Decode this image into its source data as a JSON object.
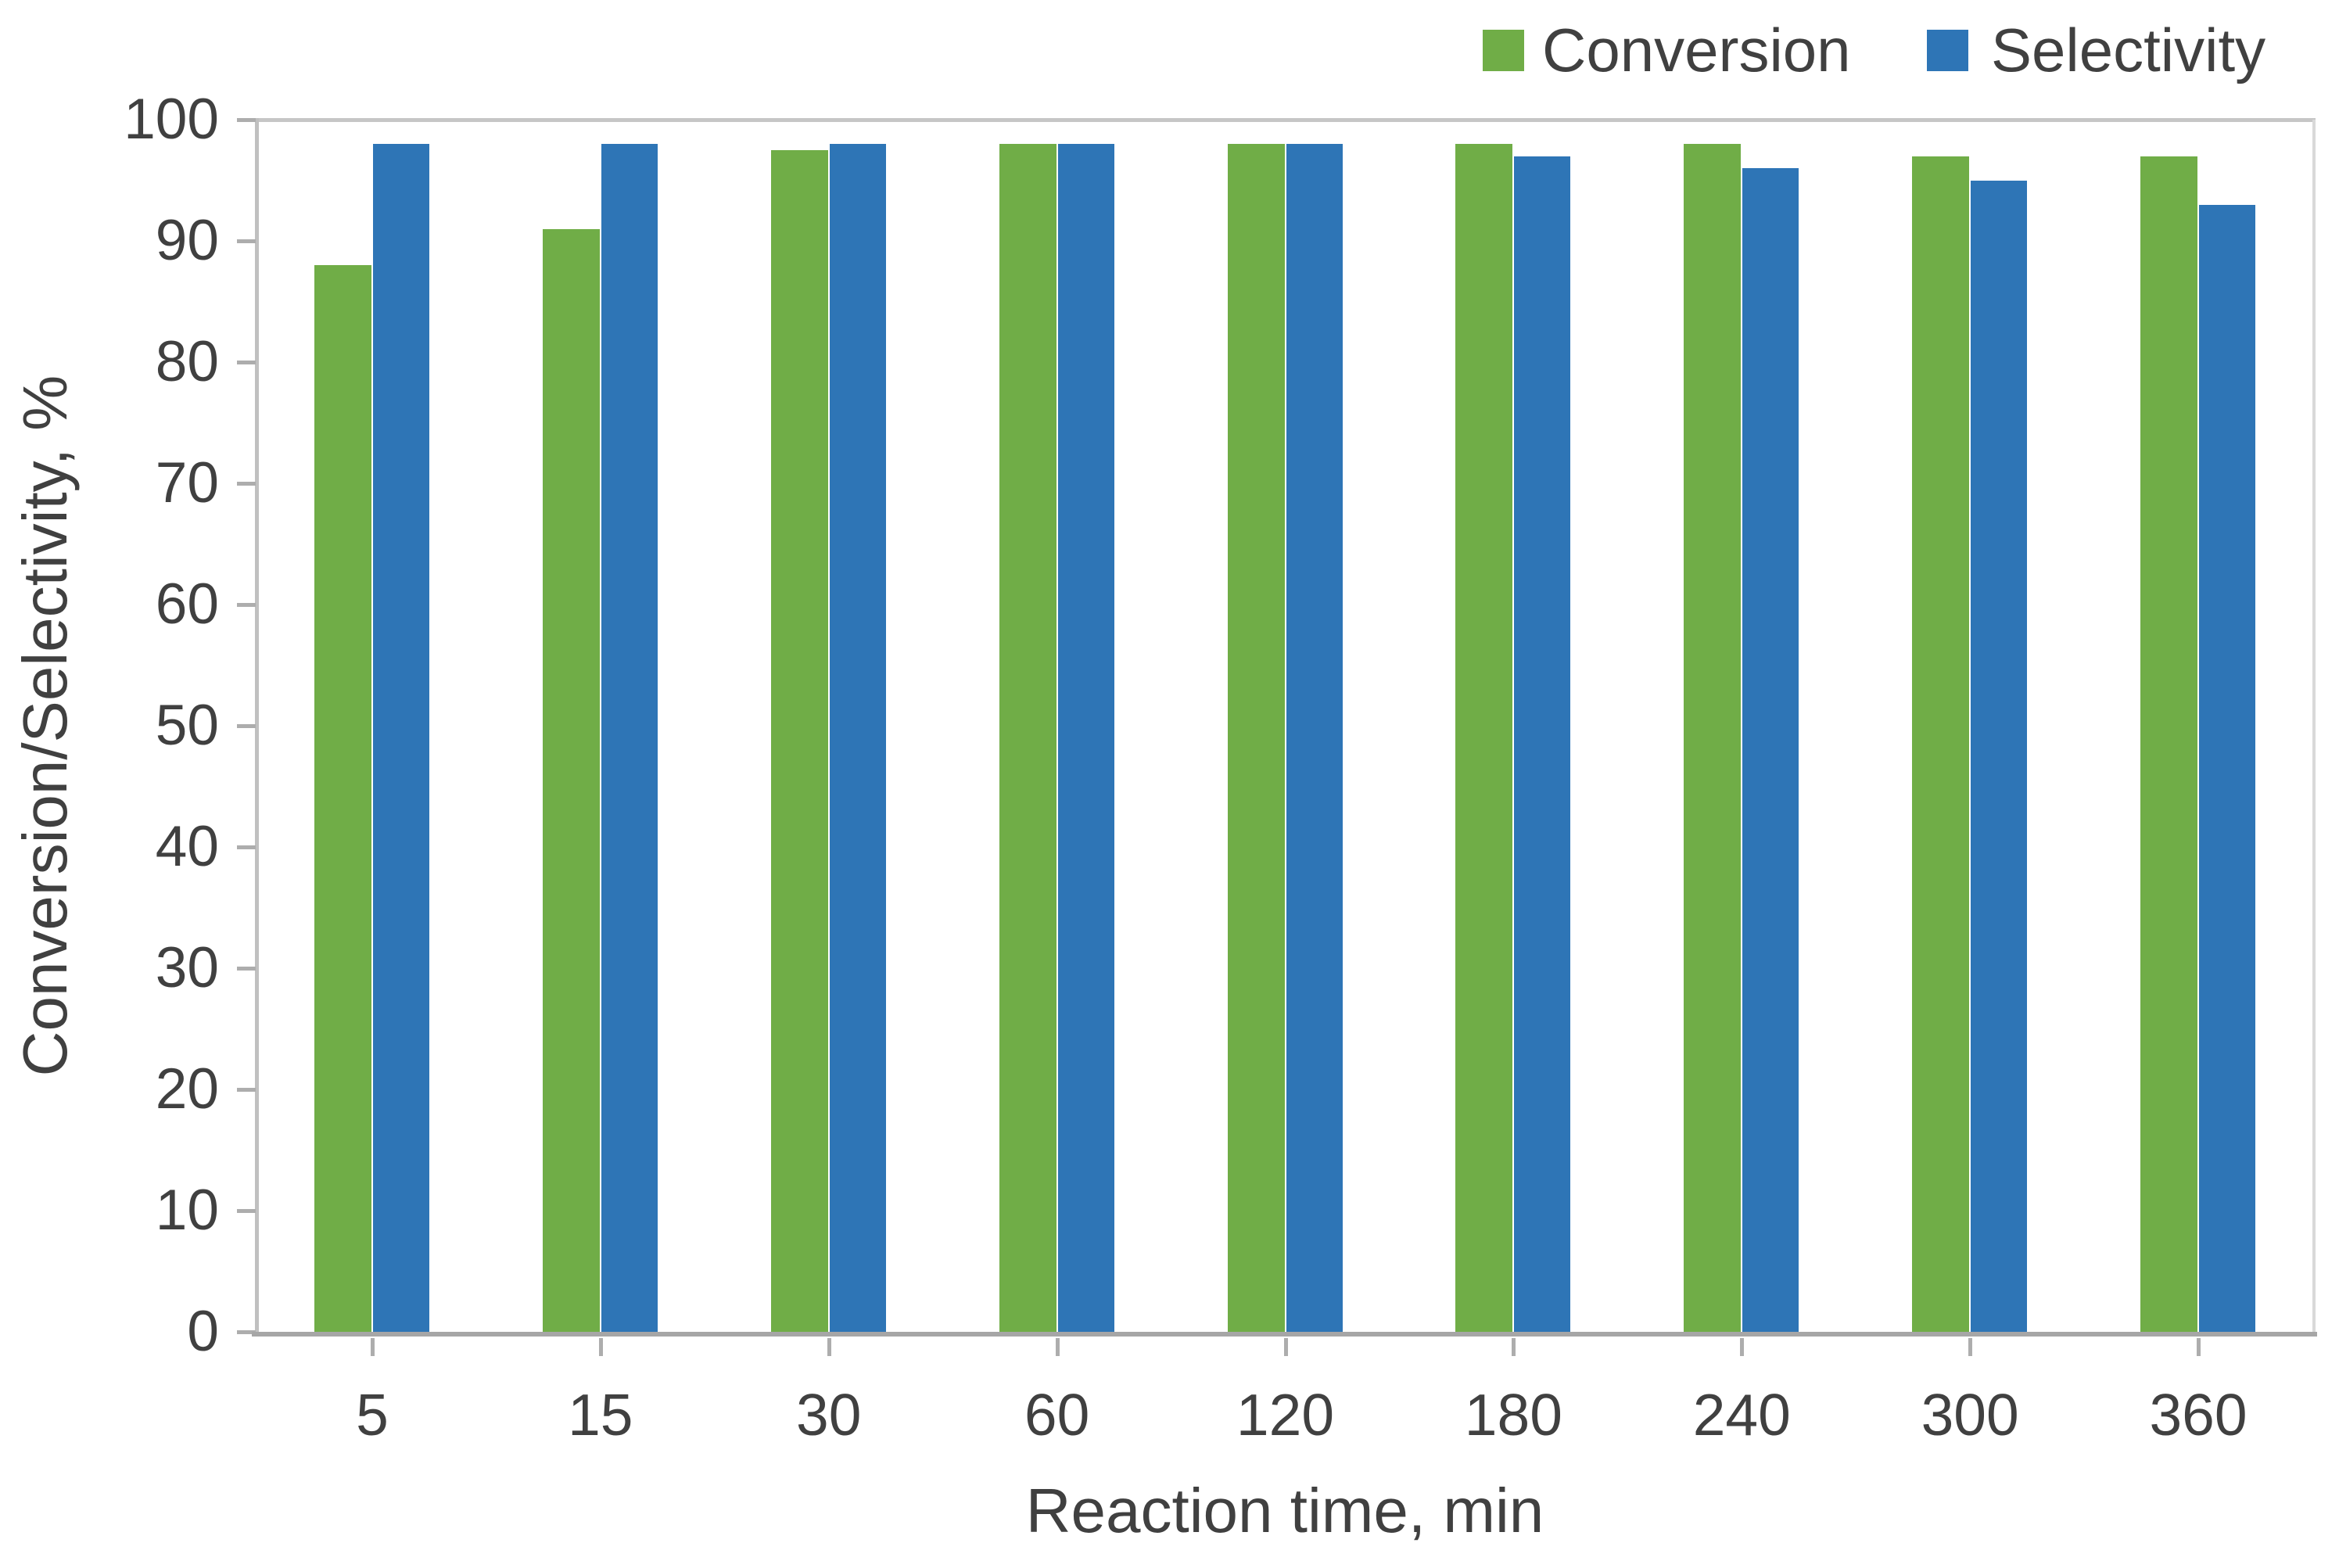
{
  "chart_data": {
    "type": "bar",
    "title": "",
    "categories": [
      "5",
      "15",
      "30",
      "60",
      "120",
      "180",
      "240",
      "300",
      "360"
    ],
    "series": [
      {
        "name": "Conversion",
        "color": "#70AD47",
        "values": [
          88,
          91,
          97.5,
          98,
          98,
          98,
          98,
          97,
          97
        ]
      },
      {
        "name": "Selectivity",
        "color": "#2E75B6",
        "values": [
          98,
          98,
          98,
          98,
          98,
          97,
          96,
          95,
          93
        ]
      }
    ],
    "xlabel": "Reaction time, min",
    "ylabel": "Conversion/Selectivity, %",
    "ylim": [
      0,
      100
    ],
    "y_tick_labels": [
      "0",
      "10",
      "20",
      "30",
      "40",
      "50",
      "60",
      "70",
      "80",
      "90",
      "100"
    ],
    "grid": "top-border-only",
    "legend_position": "top-right",
    "legend_items": [
      "Conversion",
      "Selectivity"
    ]
  },
  "colors": {
    "text": "#404040",
    "axis_line": "#A6A6A6",
    "grid_line": "#C6C6C6",
    "plot_border": "#D9D9D9",
    "y_axis_line": "#C0C0C0",
    "tick_mark": "#ADADAD"
  }
}
